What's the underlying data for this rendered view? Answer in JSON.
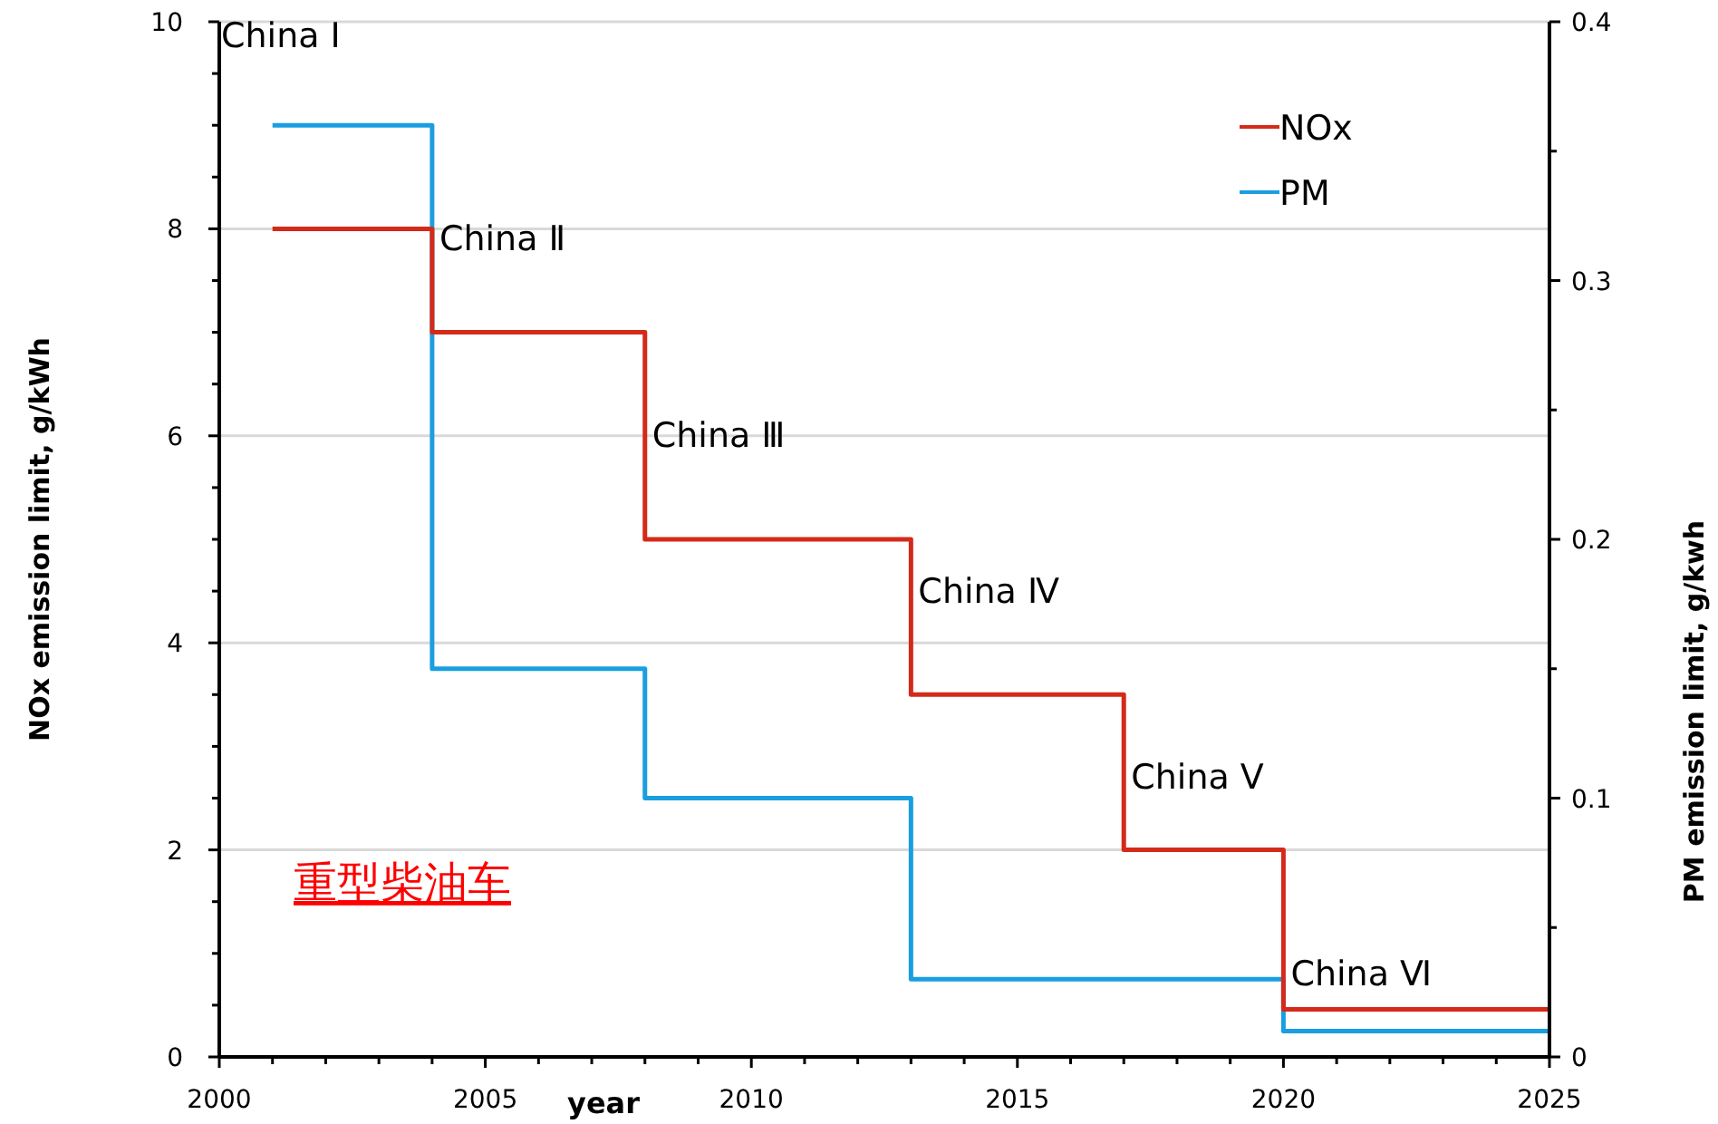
{
  "chart_data": {
    "type": "step",
    "xlabel": "year",
    "ylabel": "NOx emission limit,  g/kWh",
    "y2label": "PM emission  limit, g/kwh",
    "xlim": [
      2000,
      2025
    ],
    "xticks": [
      2000,
      {
        "value": 2001,
        "label": null
      },
      {
        "value": 2002,
        "label": null
      },
      {
        "value": 2003,
        "label": null
      },
      {
        "value": 2004,
        "label": null
      },
      2005,
      {
        "value": 2006,
        "label": null
      },
      {
        "value": 2007,
        "label": null
      },
      {
        "value": 2008,
        "label": null
      },
      {
        "value": 2009,
        "label": null
      },
      2010,
      {
        "value": 2011,
        "label": null
      },
      {
        "value": 2012,
        "label": null
      },
      {
        "value": 2013,
        "label": null
      },
      {
        "value": 2014,
        "label": null
      },
      2015,
      {
        "value": 2016,
        "label": null
      },
      {
        "value": 2017,
        "label": null
      },
      {
        "value": 2018,
        "label": null
      },
      {
        "value": 2019,
        "label": null
      },
      2020,
      {
        "value": 2021,
        "label": null
      },
      {
        "value": 2022,
        "label": null
      },
      {
        "value": 2023,
        "label": null
      },
      {
        "value": 2024,
        "label": null
      },
      2025
    ],
    "ylim": [
      0,
      10
    ],
    "yticks": [
      0,
      {
        "value": 0.5,
        "label": null
      },
      {
        "value": 1,
        "label": null
      },
      {
        "value": 1.5,
        "label": null
      },
      2,
      {
        "value": 2.5,
        "label": null
      },
      {
        "value": 3,
        "label": null
      },
      {
        "value": 3.5,
        "label": null
      },
      4,
      {
        "value": 4.5,
        "label": null
      },
      {
        "value": 5,
        "label": null
      },
      {
        "value": 5.5,
        "label": null
      },
      6,
      {
        "value": 6.5,
        "label": null
      },
      {
        "value": 7,
        "label": null
      },
      {
        "value": 7.5,
        "label": null
      },
      8,
      {
        "value": 8.5,
        "label": null
      },
      {
        "value": 9,
        "label": null
      },
      {
        "value": 9.5,
        "label": null
      },
      10
    ],
    "y2lim": [
      0,
      0.4
    ],
    "y2ticks": [
      0,
      {
        "value": 0.05,
        "label": null
      },
      0.1,
      {
        "value": 0.15,
        "label": null
      },
      0.2,
      {
        "value": 0.25,
        "label": null
      },
      0.3,
      {
        "value": 0.35,
        "label": null
      },
      0.4
    ],
    "grid": "y",
    "legend": "top right",
    "line_style": "solid",
    "series": [
      {
        "name": "NOx",
        "color": "#d42a1a",
        "x": [
          2001,
          2004,
          2008,
          2013,
          2017,
          2020,
          2025
        ],
        "values": [
          8,
          7,
          5,
          3.5,
          2,
          0.46,
          0.46
        ]
      },
      {
        "name": "PM",
        "color": "#1a9ee0",
        "axis": "y2",
        "x": [
          2001,
          2004,
          2008,
          2013,
          2020,
          2025
        ],
        "values": [
          0.36,
          0.15,
          0.1,
          0.03,
          0.01,
          0.01
        ]
      }
    ],
    "annotations": [
      "China Ⅰ",
      {
        "text": "China Ⅱ",
        "x": 2004,
        "y": 8
      },
      {
        "text": "China Ⅲ",
        "x": 2008,
        "y": 6.1
      },
      {
        "text": "China Ⅳ",
        "x": 2013,
        "y": 4.6
      },
      {
        "text": "China Ⅴ",
        "x": 2017,
        "y": 2.8
      },
      {
        "text": "China Ⅵ",
        "x": 2020,
        "y": 0.9
      },
      "重型柴油车"
    ]
  }
}
